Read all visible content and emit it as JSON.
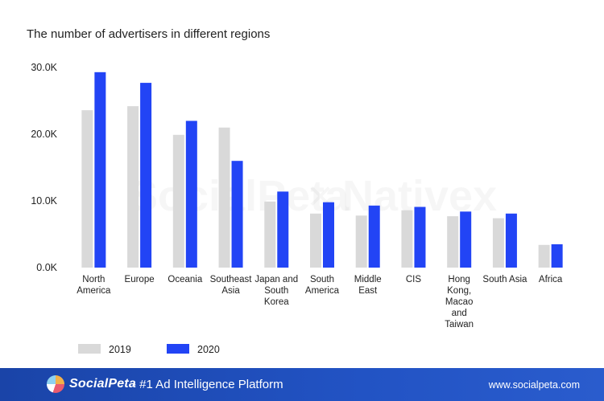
{
  "colors": {
    "series_2019": "#d9d9d9",
    "series_2020": "#2244f5",
    "footer_bg": "#1f4fb8"
  },
  "chart_data": {
    "type": "bar",
    "title": "The number of advertisers in different regions",
    "xlabel": "",
    "ylabel": "",
    "ylim": [
      0,
      30000
    ],
    "yticks": [
      {
        "value": 0,
        "label": "0.0K"
      },
      {
        "value": 10000,
        "label": "10.0K"
      },
      {
        "value": 20000,
        "label": "20.0K"
      },
      {
        "value": 30000,
        "label": "30.0K"
      }
    ],
    "grid": false,
    "legend_placement": "bottom-left",
    "categories": [
      [
        "North",
        "America"
      ],
      [
        "Europe"
      ],
      [
        "Oceania"
      ],
      [
        "Southeast",
        "Asia"
      ],
      [
        "Japan and",
        "South",
        "Korea"
      ],
      [
        "South",
        "America"
      ],
      [
        "Middle",
        "East"
      ],
      [
        "CIS"
      ],
      [
        "Hong",
        "Kong,",
        "Macao",
        "and",
        "Taiwan"
      ],
      [
        "South Asia"
      ],
      [
        "Africa"
      ]
    ],
    "series": [
      {
        "name": "2019",
        "values": [
          23600,
          24200,
          19900,
          21000,
          9900,
          8100,
          7800,
          8600,
          7700,
          7400,
          3400
        ]
      },
      {
        "name": "2020",
        "values": [
          29300,
          27700,
          22000,
          16000,
          11400,
          9800,
          9300,
          9100,
          8400,
          8100,
          3500
        ]
      }
    ]
  },
  "watermark": {
    "brand": "SocialPeta",
    "separator": "×",
    "partner": "Nativex"
  },
  "footer": {
    "brand": "SocialPeta",
    "tagline": "- #1 Ad Intelligence Platform",
    "url": "www.socialpeta.com"
  }
}
